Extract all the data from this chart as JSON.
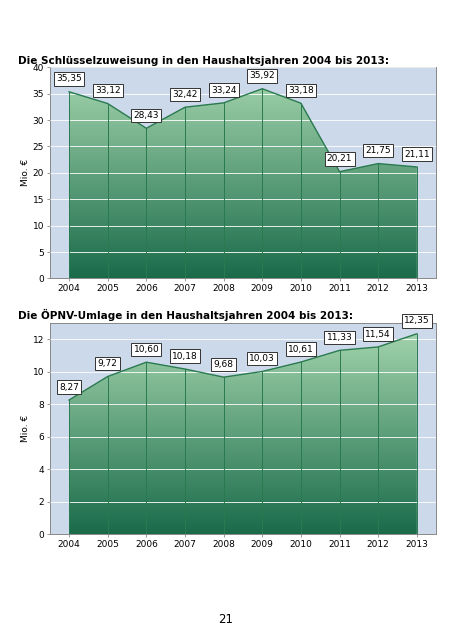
{
  "chart1": {
    "title": "Die Schlüsselzuweisung in den Haushaltsjahren 2004 bis 2013:",
    "years": [
      2004,
      2005,
      2006,
      2007,
      2008,
      2009,
      2010,
      2011,
      2012,
      2013
    ],
    "values": [
      35.35,
      33.12,
      28.43,
      32.42,
      33.24,
      35.92,
      33.18,
      20.21,
      21.75,
      21.11
    ],
    "ylabel": "Mio. €",
    "ylim": [
      0,
      40
    ],
    "yticks": [
      0,
      5,
      10,
      15,
      20,
      25,
      30,
      35,
      40
    ]
  },
  "chart2": {
    "title": "Die ÖPNV-Umlage in den Haushaltsjahren 2004 bis 2013:",
    "years": [
      2004,
      2005,
      2006,
      2007,
      2008,
      2009,
      2010,
      2011,
      2012,
      2013
    ],
    "values": [
      8.27,
      9.72,
      10.6,
      10.18,
      9.68,
      10.03,
      10.61,
      11.33,
      11.54,
      12.35
    ],
    "ylabel": "Mio. €",
    "ylim": [
      0,
      13
    ],
    "yticks": [
      0,
      2,
      4,
      6,
      8,
      10,
      12
    ]
  },
  "bg_color": "#ccd9ea",
  "area_green_top": "#a8d8b0",
  "area_green_bot": "#1a6b4a",
  "line_color": "#2a7a50",
  "title_fontsize": 7.5,
  "label_fontsize": 6.5,
  "axis_fontsize": 6.5,
  "page_number": "21"
}
